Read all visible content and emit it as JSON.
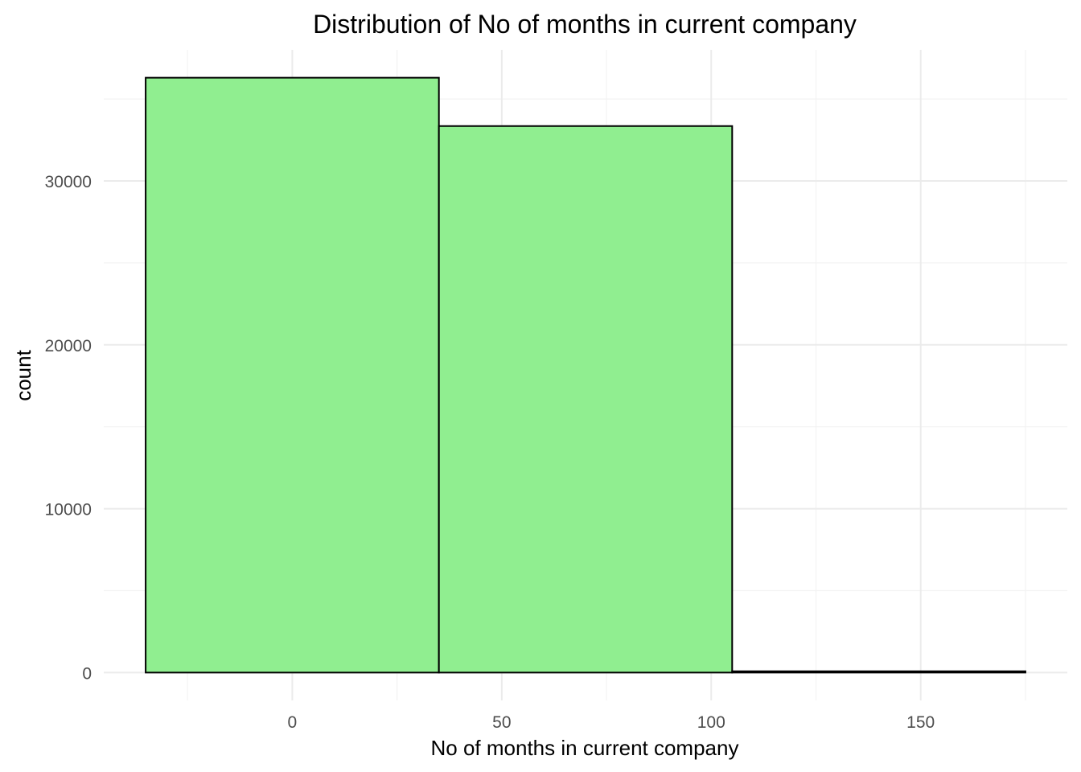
{
  "chart_data": {
    "type": "bar",
    "title": "Distribution of No of months in current company",
    "xlabel": "No of months in current company",
    "ylabel": "count",
    "bins": [
      {
        "x_start": -35,
        "x_end": 35,
        "count": 36300
      },
      {
        "x_start": 35,
        "x_end": 105,
        "count": 33350
      },
      {
        "x_start": 105,
        "x_end": 175,
        "count": 80
      }
    ],
    "xlim": [
      -45,
      185
    ],
    "ylim": [
      -1700,
      38000
    ],
    "x_ticks": [
      0,
      50,
      100,
      150
    ],
    "x_tick_labels": [
      "0",
      "50",
      "100",
      "150"
    ],
    "y_ticks": [
      0,
      10000,
      20000,
      30000
    ],
    "y_tick_labels": [
      "0",
      "10000",
      "20000",
      "30000"
    ],
    "grid": true,
    "legend": "none",
    "colors": {
      "bar_fill": "#90EE90",
      "bar_outline": "#000000",
      "grid": "#ebebeb"
    }
  }
}
